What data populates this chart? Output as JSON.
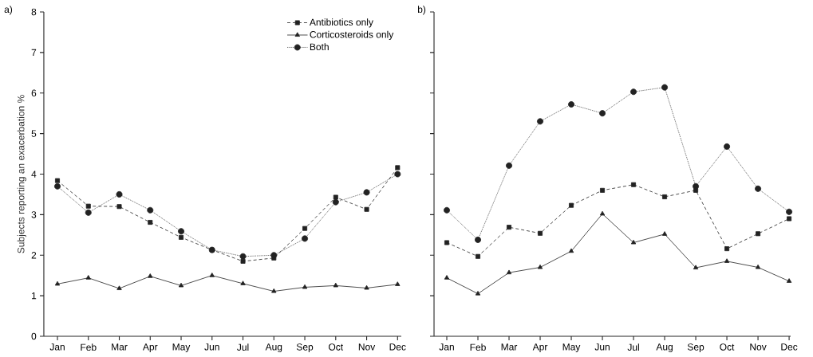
{
  "chart_data": [
    {
      "type": "line",
      "title": "a)",
      "ylabel": "Subjects reporting an exacerbation %",
      "categories": [
        "Jan",
        "Feb",
        "Mar",
        "Apr",
        "May",
        "Jun",
        "Jul",
        "Aug",
        "Sep",
        "Oct",
        "Nov",
        "Dec"
      ],
      "ylim": [
        0,
        8
      ],
      "yticks": [
        0,
        1,
        2,
        3,
        4,
        5,
        6,
        7,
        8
      ],
      "grid": false,
      "legend": "top right",
      "series": [
        {
          "name": "Antibiotics only",
          "color": "#222222",
          "marker": "square",
          "line_style": "dashed",
          "values": [
            3.84,
            3.21,
            3.2,
            2.81,
            2.44,
            2.13,
            1.85,
            1.93,
            2.66,
            3.43,
            3.13,
            4.16
          ]
        },
        {
          "name": "Corticosteroids only",
          "color": "#222222",
          "marker": "triangle",
          "line_style": "solid",
          "values": [
            1.29,
            1.44,
            1.18,
            1.48,
            1.25,
            1.5,
            1.3,
            1.11,
            1.21,
            1.25,
            1.19,
            1.28
          ]
        },
        {
          "name": "Both",
          "color": "#222222",
          "marker": "circle",
          "line_style": "dotted",
          "values": [
            3.7,
            3.05,
            3.5,
            3.11,
            2.59,
            2.13,
            1.97,
            2.0,
            2.41,
            3.31,
            3.55,
            4.0
          ]
        }
      ]
    },
    {
      "type": "line",
      "title": "b)",
      "categories": [
        "Jan",
        "Feb",
        "Mar",
        "Apr",
        "May",
        "Jun",
        "Jul",
        "Aug",
        "Sep",
        "Oct",
        "Nov",
        "Dec"
      ],
      "ylim": [
        0,
        8
      ],
      "yticks": [
        {
          "value": 0,
          "label": null
        },
        {
          "value": 1,
          "label": null
        },
        {
          "value": 2,
          "label": null
        },
        {
          "value": 3,
          "label": null
        },
        {
          "value": 4,
          "label": null
        },
        {
          "value": 5,
          "label": null
        },
        {
          "value": 6,
          "label": null
        },
        {
          "value": 7,
          "label": null
        },
        {
          "value": 8,
          "label": null
        }
      ],
      "tick_labels": "x",
      "grid": false,
      "series": [
        {
          "color": "#222222",
          "marker": "square",
          "line_style": "dashed",
          "values": [
            2.31,
            1.97,
            2.69,
            2.54,
            3.23,
            3.6,
            3.74,
            3.44,
            3.6,
            2.16,
            2.53,
            2.9
          ]
        },
        {
          "color": "#222222",
          "marker": "triangle",
          "line_style": "solid",
          "values": [
            1.44,
            1.05,
            1.57,
            1.7,
            2.1,
            3.02,
            2.31,
            2.52,
            1.69,
            1.85,
            1.7,
            1.36
          ]
        },
        {
          "color": "#222222",
          "marker": "circle",
          "line_style": "dotted",
          "values": [
            3.11,
            2.38,
            4.21,
            5.3,
            5.72,
            5.5,
            6.03,
            6.14,
            3.7,
            4.68,
            3.64,
            3.07
          ]
        }
      ]
    }
  ]
}
